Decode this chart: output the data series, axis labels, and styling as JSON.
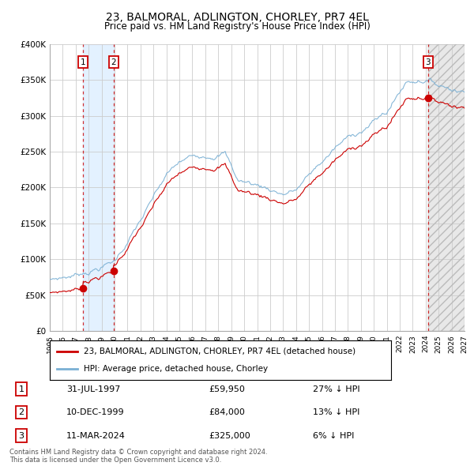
{
  "title": "23, BALMORAL, ADLINGTON, CHORLEY, PR7 4EL",
  "subtitle": "Price paid vs. HM Land Registry's House Price Index (HPI)",
  "title_fontsize": 10,
  "subtitle_fontsize": 8.5,
  "ylim": [
    0,
    400000
  ],
  "yticks": [
    0,
    50000,
    100000,
    150000,
    200000,
    250000,
    300000,
    350000,
    400000
  ],
  "ytick_labels": [
    "£0",
    "£50K",
    "£100K",
    "£150K",
    "£200K",
    "£250K",
    "£300K",
    "£350K",
    "£400K"
  ],
  "xmin": 1995.0,
  "xmax": 2027.0,
  "sale_dates": [
    1997.58,
    1999.94,
    2024.19
  ],
  "sale_prices": [
    59950,
    84000,
    325000
  ],
  "hpi_color": "#7ab0d4",
  "sale_color": "#cc0000",
  "vline_color": "#cc0000",
  "shade1_start": 1997.58,
  "shade1_end": 1999.94,
  "shade_color": "#ddeeff",
  "future_shade_start": 2024.19,
  "future_shade_end": 2027.0,
  "legend_line1": "23, BALMORAL, ADLINGTON, CHORLEY, PR7 4EL (detached house)",
  "legend_line2": "HPI: Average price, detached house, Chorley",
  "table_rows": [
    [
      "1",
      "31-JUL-1997",
      "£59,950",
      "27% ↓ HPI"
    ],
    [
      "2",
      "10-DEC-1999",
      "£84,000",
      "13% ↓ HPI"
    ],
    [
      "3",
      "11-MAR-2024",
      "£325,000",
      "6% ↓ HPI"
    ]
  ],
  "footnote": "Contains HM Land Registry data © Crown copyright and database right 2024.\nThis data is licensed under the Open Government Licence v3.0.",
  "background_color": "#ffffff",
  "grid_color": "#cccccc"
}
